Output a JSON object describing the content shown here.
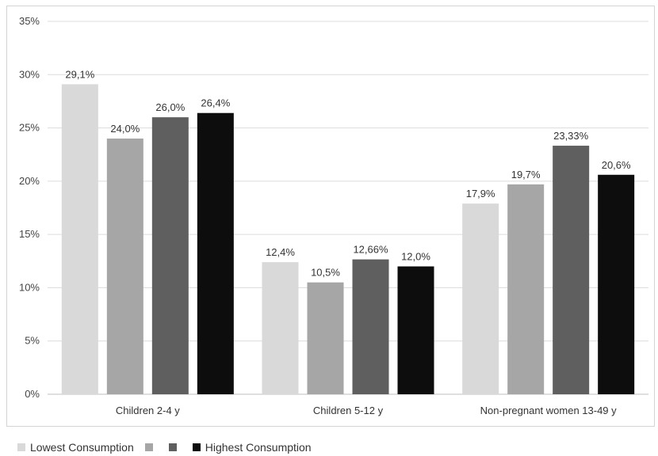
{
  "chart_data": {
    "type": "bar",
    "title": "",
    "xlabel": "",
    "ylabel": "",
    "ylim": [
      0,
      35
    ],
    "y_ticks": [
      0,
      5,
      10,
      15,
      20,
      25,
      30,
      35
    ],
    "y_tick_labels": [
      "0%",
      "5%",
      "10%",
      "15%",
      "20%",
      "25%",
      "30%",
      "35%"
    ],
    "categories": [
      "Children 2-4 y",
      "Children 5-12 y",
      "Non-pregnant women 13-49 y"
    ],
    "series": [
      {
        "name": "Lowest Consumption",
        "color": "#d9d9d9",
        "values": [
          29.1,
          12.4,
          17.9
        ],
        "labels": [
          "29,1%",
          "12,4%",
          "17,9%"
        ]
      },
      {
        "name": "",
        "color": "#a6a6a6",
        "values": [
          24.0,
          10.5,
          19.7
        ],
        "labels": [
          "24,0%",
          "10,5%",
          "19,7%"
        ]
      },
      {
        "name": "",
        "color": "#5f5f5f",
        "values": [
          26.0,
          12.66,
          23.33
        ],
        "labels": [
          "26,0%",
          "12,66%",
          "23,33%"
        ]
      },
      {
        "name": "Highest Consumption",
        "color": "#0d0d0d",
        "values": [
          26.4,
          12.0,
          20.6
        ],
        "labels": [
          "26,4%",
          "12,0%",
          "20,6%"
        ]
      }
    ],
    "grid": true,
    "legend_position": "bottom"
  }
}
